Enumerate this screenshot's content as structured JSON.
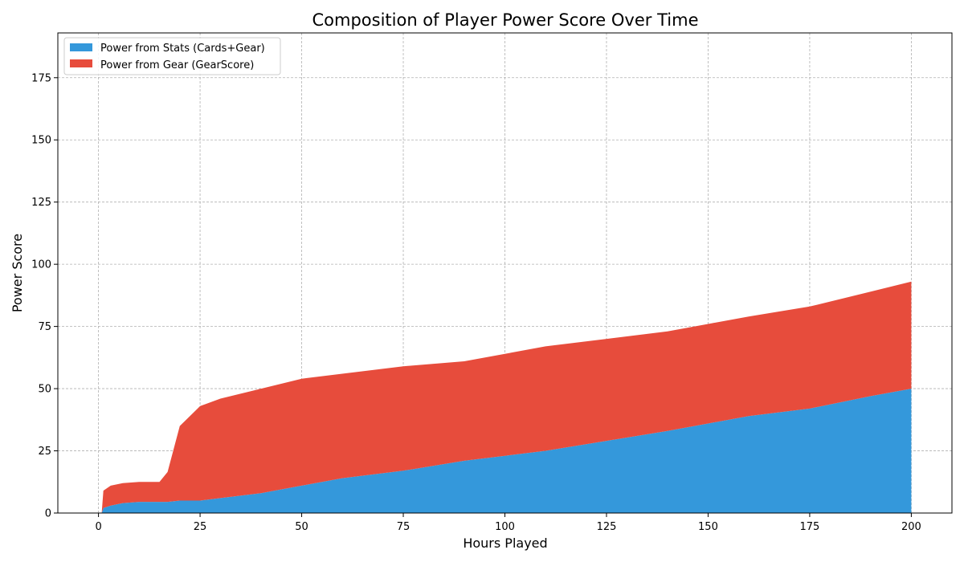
{
  "chart_data": {
    "type": "area",
    "title": "Composition of Player Power Score Over Time",
    "xlabel": "Hours Played",
    "ylabel": "Power Score",
    "xlim": [
      -10,
      210
    ],
    "ylim": [
      0,
      193
    ],
    "xticks": [
      0,
      25,
      50,
      75,
      100,
      125,
      150,
      175,
      200
    ],
    "yticks": [
      0,
      25,
      50,
      75,
      100,
      125,
      150,
      175
    ],
    "grid": true,
    "legend_position": "top-left",
    "stacked": true,
    "x": [
      0,
      0.8,
      1.2,
      3,
      6,
      10,
      15,
      17,
      20,
      25,
      30,
      40,
      50,
      60,
      75,
      90,
      100,
      110,
      125,
      140,
      150,
      160,
      175,
      190,
      200
    ],
    "series": [
      {
        "name": "Power from Stats (Cards+Gear)",
        "color": "#3498db",
        "values": [
          0,
          0,
          2,
          3,
          4,
          4.5,
          4.5,
          4.5,
          5,
          5,
          6,
          8,
          11,
          14,
          17,
          21,
          23,
          25,
          29,
          33,
          36,
          39,
          42,
          47,
          50
        ]
      },
      {
        "name": "Power from Gear (GearScore)",
        "color": "#e74c3c",
        "values": [
          0,
          0,
          7,
          8,
          8,
          8,
          8,
          12,
          30,
          38,
          40,
          42,
          43,
          42,
          42,
          40,
          41,
          42,
          41,
          40,
          40,
          40,
          41,
          42,
          43
        ]
      }
    ]
  }
}
